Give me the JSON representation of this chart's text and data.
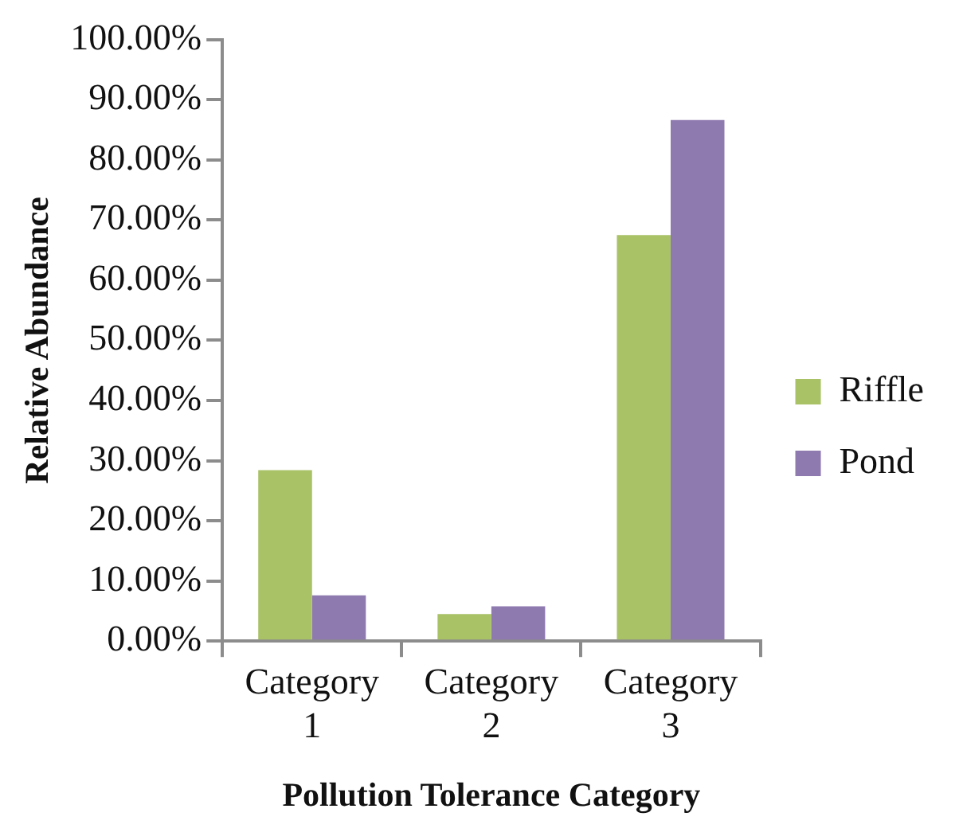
{
  "chart_data": {
    "type": "bar",
    "xlabel": "Pollution Tolerance Category",
    "ylabel": "Relative Abundance",
    "categories": [
      "Category 1",
      "Category 2",
      "Category 3"
    ],
    "series": [
      {
        "name": "Riffle",
        "color": "#a9c266",
        "values": [
          28.4,
          4.5,
          67.5
        ]
      },
      {
        "name": "Pond",
        "color": "#8f7ab0",
        "values": [
          7.6,
          5.8,
          86.6
        ]
      }
    ],
    "ylim": [
      0,
      100
    ],
    "yticks": [
      {
        "value": 0,
        "label": "0.00%"
      },
      {
        "value": 10,
        "label": "10.00%"
      },
      {
        "value": 20,
        "label": "20.00%"
      },
      {
        "value": 30,
        "label": "30.00%"
      },
      {
        "value": 40,
        "label": "40.00%"
      },
      {
        "value": 50,
        "label": "50.00%"
      },
      {
        "value": 60,
        "label": "60.00%"
      },
      {
        "value": 70,
        "label": "70.00%"
      },
      {
        "value": 80,
        "label": "80.00%"
      },
      {
        "value": 90,
        "label": "90.00%"
      },
      {
        "value": 100,
        "label": "100.00%"
      }
    ],
    "grid": false,
    "legend": "right"
  }
}
